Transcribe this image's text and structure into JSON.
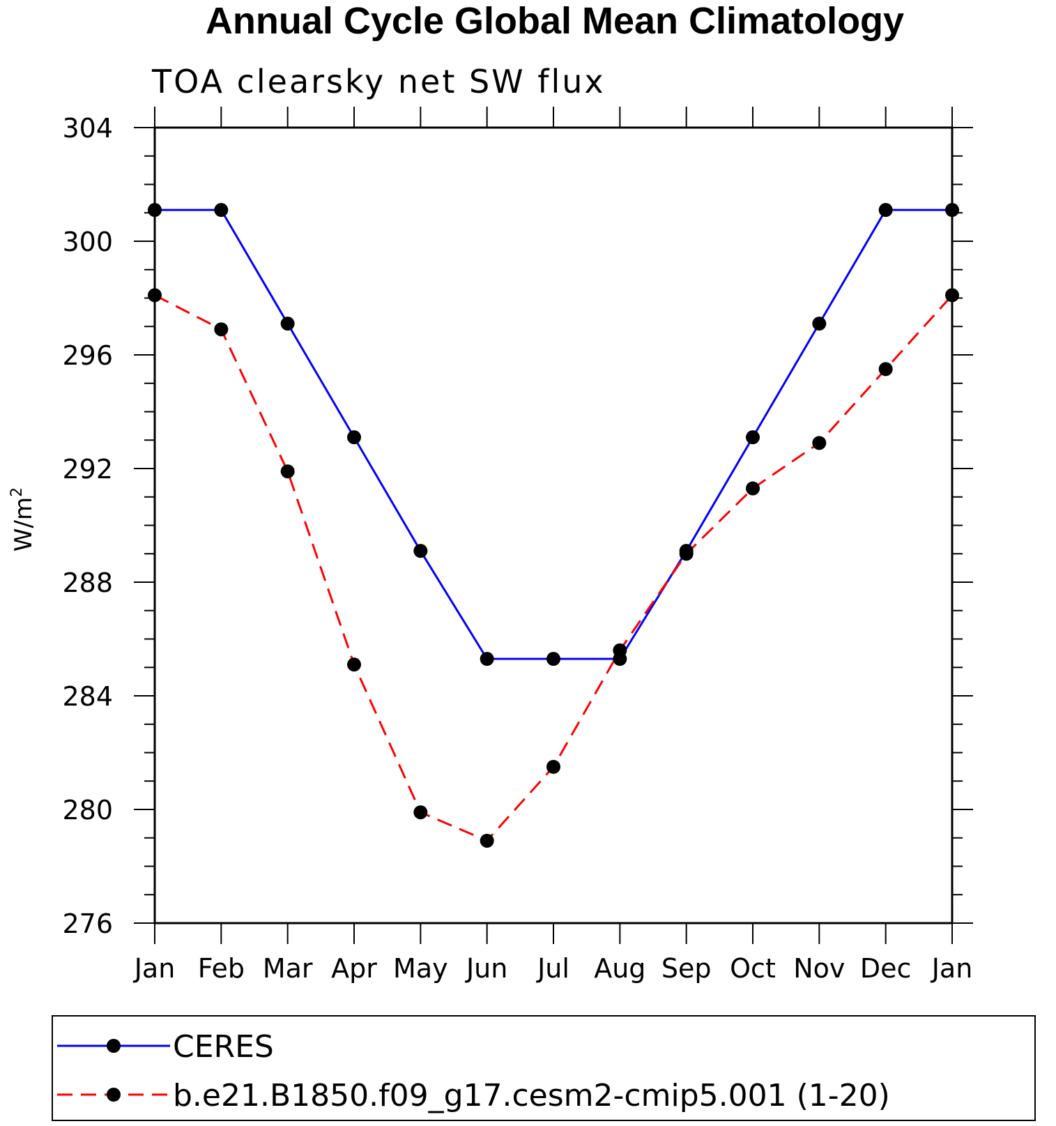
{
  "chart_data": {
    "type": "line",
    "title": "Annual Cycle Global Mean Climatology",
    "subtitle": "TOA clearsky net SW flux",
    "ylabel_base": "W/m",
    "ylabel_sup": "2",
    "xlabel": "",
    "categories": [
      "Jan",
      "Feb",
      "Mar",
      "Apr",
      "May",
      "Jun",
      "Jul",
      "Aug",
      "Sep",
      "Oct",
      "Nov",
      "Dec",
      "Jan"
    ],
    "ylim": [
      276,
      304
    ],
    "yticks": [
      276,
      280,
      284,
      288,
      292,
      296,
      300,
      304
    ],
    "series": [
      {
        "name": "CERES",
        "color": "#0000ff",
        "dash": "solid",
        "values": [
          301.1,
          301.1,
          297.1,
          293.1,
          289.1,
          285.3,
          285.3,
          285.3,
          289.1,
          293.1,
          297.1,
          301.1,
          301.1
        ]
      },
      {
        "name": "b.e21.B1850.f09_g17.cesm2-cmip5.001 (1-20)",
        "color": "#ff0000",
        "dash": "dashed",
        "values": [
          298.1,
          296.9,
          291.9,
          285.1,
          279.9,
          278.9,
          281.5,
          285.6,
          289.0,
          291.3,
          292.9,
          295.5,
          298.1
        ]
      }
    ]
  }
}
